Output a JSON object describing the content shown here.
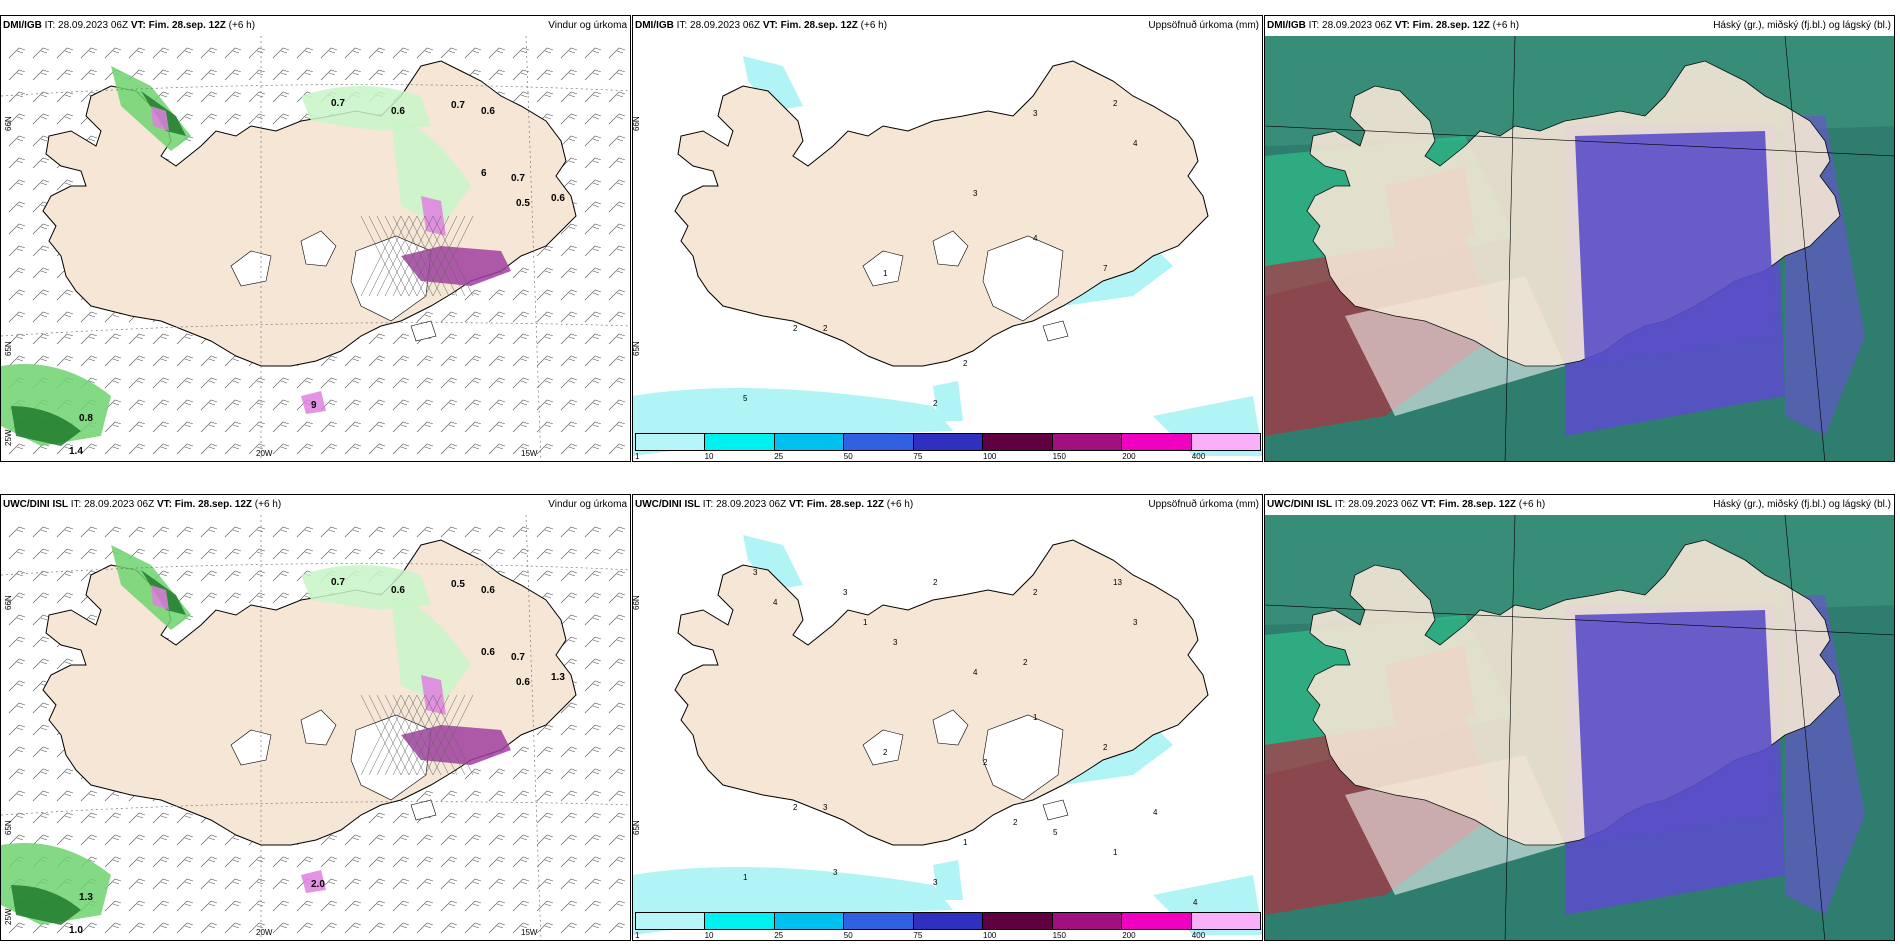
{
  "colors": {
    "land": "#f5e6d6",
    "light_green": "#c8f5c8",
    "green": "#6fd46f",
    "dark_green": "#1f7a2a",
    "magenta": "#e080e0",
    "purple": "#a040a0",
    "cyan_light": "#b0f4f6",
    "ocean": "#2f7d6f",
    "cloud_blue": "#5a4fc8",
    "cloud_red": "#b03040"
  },
  "panels": [
    {
      "id": "p1",
      "model": "DMI/IGB",
      "it": "IT: 28.09.2023 06Z",
      "vt_label": "VT:",
      "vt": "Fim. 28.sep. 12Z",
      "offset": "(+6 h)",
      "title": "Vindur og úrkoma",
      "kind": "wind",
      "labels": [
        "0.7",
        "0.6",
        "0.7",
        "0.6",
        "6",
        "0.7",
        "0.5",
        "0.6",
        "0.8",
        "1.4",
        "9"
      ],
      "axes": [
        "66N",
        "65N",
        "25W",
        "20W",
        "15W"
      ]
    },
    {
      "id": "p2",
      "model": "DMI/IGB",
      "it": "IT: 28.09.2023 06Z",
      "vt_label": "VT:",
      "vt": "Fim. 28.sep. 12Z",
      "offset": "(+6 h)",
      "title": "Uppsöfnuð úrkoma (mm)",
      "kind": "accum",
      "labels": [
        "2",
        "3",
        "4",
        "3",
        "4",
        "7",
        "2",
        "2",
        "2",
        "5",
        "1",
        "2"
      ],
      "axes": [
        "66N",
        "65N"
      ]
    },
    {
      "id": "p3",
      "model": "DMI/IGB",
      "it": "IT: 28.09.2023 06Z",
      "vt_label": "VT:",
      "vt": "Fim. 28.sep. 12Z",
      "offset": "(+6 h)",
      "title": "Háský (gr.), miðský (fj.bl.) og lágský (bl.)",
      "kind": "cloud",
      "labels": [],
      "axes": []
    },
    {
      "id": "p4",
      "model": "UWC/DINI ISL",
      "it": "IT: 28.09.2023 06Z",
      "vt_label": "VT:",
      "vt": "Fim. 28.sep. 12Z",
      "offset": "(+6 h)",
      "title": "Vindur og úrkoma",
      "kind": "wind",
      "labels": [
        "0.7",
        "0.6",
        "0.5",
        "0.6",
        "0.6",
        "0.7",
        "0.6",
        "1.3",
        "1.3",
        "1.0",
        "2.0"
      ],
      "axes": [
        "66N",
        "65N",
        "25W",
        "20W",
        "15W"
      ]
    },
    {
      "id": "p5",
      "model": "UWC/DINI ISL",
      "it": "IT: 28.09.2023 06Z",
      "vt_label": "VT:",
      "vt": "Fim. 28.sep. 12Z",
      "offset": "(+6 h)",
      "title": "Uppsöfnuð úrkoma (mm)",
      "kind": "accum",
      "labels": [
        "13",
        "2",
        "3",
        "4",
        "1",
        "2",
        "2",
        "3",
        "1",
        "1",
        "2",
        "3",
        "4",
        "5",
        "2",
        "1",
        "4",
        "3",
        "2",
        "2",
        "3",
        "1",
        "3",
        "4",
        "3",
        "2",
        "1"
      ],
      "axes": [
        "66N",
        "65N"
      ]
    },
    {
      "id": "p6",
      "model": "UWC/DINI ISL",
      "it": "IT: 28.09.2023 06Z",
      "vt_label": "VT:",
      "vt": "Fim. 28.sep. 12Z",
      "offset": "(+6 h)",
      "title": "Háský (gr.), miðský (fj.bl.) og lágský (bl.)",
      "kind": "cloud",
      "labels": [],
      "axes": []
    }
  ],
  "colorbar": {
    "colors": [
      "#b6f6f8",
      "#00f0f0",
      "#00c0f0",
      "#3060e0",
      "#3030c0",
      "#600040",
      "#a01080",
      "#f000c0",
      "#f8b0f8"
    ],
    "ticks": [
      "1",
      "10",
      "25",
      "50",
      "75",
      "100",
      "150",
      "200",
      "400"
    ]
  }
}
